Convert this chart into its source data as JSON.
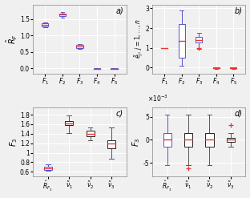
{
  "subplot_a": {
    "label": "a)",
    "ylabel": "$\\hat{R}_F$",
    "xlabel_labels": [
      "$F_1$",
      "$F_2$",
      "$F_3$",
      "$F_4$",
      "$F_5$"
    ],
    "boxes": [
      {
        "med": 1.33,
        "q1": 1.29,
        "q3": 1.37,
        "whislo": 1.25,
        "whishi": 1.41,
        "fliers": [],
        "color": "blue"
      },
      {
        "med": 1.64,
        "q1": 1.6,
        "q3": 1.68,
        "whislo": 1.56,
        "whishi": 1.72,
        "fliers": [],
        "color": "blue"
      },
      {
        "med": 0.67,
        "q1": 0.63,
        "q3": 0.71,
        "whislo": 0.6,
        "whishi": 0.74,
        "fliers": [],
        "color": "blue"
      },
      {
        "med": -0.003,
        "q1": -0.007,
        "q3": 0.001,
        "whislo": -0.012,
        "whishi": 0.005,
        "fliers": [],
        "color": "blue"
      },
      {
        "med": -0.003,
        "q1": -0.008,
        "q3": 0.001,
        "whislo": -0.013,
        "whishi": 0.006,
        "fliers": [],
        "color": "blue"
      }
    ],
    "ylim": [
      -0.15,
      1.95
    ],
    "yticks": [
      0.0,
      0.5,
      1.0,
      1.5
    ]
  },
  "subplot_b": {
    "label": "b)",
    "ylabel": "$\\tilde{e}_j,\\, j=1,\\ldots,n$",
    "xlabel_labels": [
      "$F_1$",
      "$F_2$",
      "$F_3$",
      "$F_4$",
      "$F_5$"
    ],
    "boxes": [
      {
        "med": 1.0,
        "q1": 1.0,
        "q3": 1.0,
        "whislo": 1.0,
        "whishi": 1.0,
        "fliers": [],
        "color": "blue"
      },
      {
        "med": 1.35,
        "q1": 0.5,
        "q3": 2.2,
        "whislo": 0.08,
        "whishi": 2.9,
        "fliers": [],
        "color": "blue"
      },
      {
        "med": 1.4,
        "q1": 1.28,
        "q3": 1.56,
        "whislo": 0.95,
        "whishi": 1.75,
        "fliers": [
          1.0
        ],
        "color": "blue"
      },
      {
        "med": -0.02,
        "q1": -0.04,
        "q3": 0.01,
        "whislo": -0.07,
        "whishi": 0.03,
        "fliers": [],
        "color": "blue"
      },
      {
        "med": -0.02,
        "q1": -0.04,
        "q3": 0.01,
        "whislo": -0.07,
        "whishi": 0.03,
        "fliers": [],
        "color": "blue"
      }
    ],
    "ylim": [
      -0.3,
      3.2
    ],
    "yticks": [
      0,
      1,
      2,
      3
    ]
  },
  "subplot_c": {
    "label": "c)",
    "ylabel": "$F_3$",
    "xlabel_labels": [
      "$\\hat{R}_{F_3}$",
      "$\\tilde{\\nu}_1$",
      "$\\tilde{\\nu}_2$",
      "$\\tilde{\\nu}_3$"
    ],
    "boxes": [
      {
        "med": 0.67,
        "q1": 0.64,
        "q3": 0.7,
        "whislo": 0.62,
        "whishi": 0.75,
        "fliers": [],
        "color": "blue"
      },
      {
        "med": 1.62,
        "q1": 1.58,
        "q3": 1.67,
        "whislo": 1.42,
        "whishi": 1.79,
        "fliers": [],
        "color": "black"
      },
      {
        "med": 1.4,
        "q1": 1.34,
        "q3": 1.46,
        "whislo": 1.26,
        "whishi": 1.54,
        "fliers": [],
        "color": "black"
      },
      {
        "med": 1.19,
        "q1": 1.1,
        "q3": 1.27,
        "whislo": 0.88,
        "whishi": 1.53,
        "fliers": [],
        "color": "black"
      }
    ],
    "ylim": [
      0.5,
      1.95
    ],
    "yticks": [
      0.6,
      0.8,
      1.0,
      1.2,
      1.4,
      1.6,
      1.8
    ]
  },
  "subplot_d": {
    "label": "d)",
    "ylabel": "$F_3$",
    "scale_label": "$\\times10^{-3}$",
    "xlabel_labels": [
      "$\\hat{R}_{F_3}$",
      "$\\tilde{\\nu}_1$",
      "$\\tilde{\\nu}_2$",
      "$\\tilde{\\nu}_3$"
    ],
    "boxes": [
      {
        "med": 0.0,
        "q1": -1.5,
        "q3": 1.5,
        "whislo": -5.5,
        "whishi": 5.5,
        "fliers": [],
        "color": "blue"
      },
      {
        "med": 0.0,
        "q1": -1.5,
        "q3": 1.5,
        "whislo": -5.5,
        "whishi": 5.5,
        "fliers": [
          -6.2
        ],
        "color": "black"
      },
      {
        "med": 0.0,
        "q1": -1.5,
        "q3": 1.5,
        "whislo": -5.5,
        "whishi": 5.5,
        "fliers": [],
        "color": "black"
      },
      {
        "med": 0.0,
        "q1": -0.5,
        "q3": 0.5,
        "whislo": -1.5,
        "whishi": 1.5,
        "fliers": [
          3.2
        ],
        "color": "black"
      }
    ],
    "ylim": [
      -8.0,
      7.0
    ],
    "yticks": [
      -5,
      0,
      5
    ]
  },
  "box_color_blue": "#5555cc",
  "box_color_black": "#222222",
  "median_color": "#ee3333",
  "whisk_color_blue": "#5555cc",
  "whisk_color_black": "#555555",
  "flier_color": "#ee3333",
  "bg_color": "#f0f0f0",
  "grid_color": "#ffffff"
}
